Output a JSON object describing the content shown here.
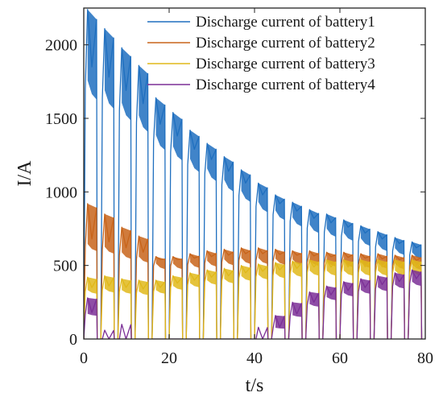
{
  "chart_data": {
    "type": "line",
    "title": "",
    "xlabel": "t/s",
    "ylabel": "I/A",
    "xlim": [
      0,
      80
    ],
    "ylim": [
      0,
      2250
    ],
    "x_ticks": [
      0,
      20,
      40,
      60,
      80
    ],
    "y_ticks": [
      0,
      500,
      1000,
      1500,
      2000
    ],
    "grid": false,
    "legend_position": "top-right",
    "pulse_period_s": 4,
    "series": [
      {
        "name": "Discharge current of battery1",
        "color": "#1f6fbf",
        "pulse_peak": [
          2240,
          2110,
          1980,
          1860,
          1640,
          1540,
          1420,
          1330,
          1240,
          1150,
          1060,
          980,
          930,
          880,
          850,
          810,
          770,
          730,
          690,
          660
        ],
        "pulse_band": [
          1850,
          1780,
          1690,
          1600,
          1460,
          1380,
          1290,
          1220,
          1140,
          1060,
          980,
          920,
          870,
          820,
          790,
          760,
          720,
          680,
          650,
          620
        ]
      },
      {
        "name": "Discharge current of battery2",
        "color": "#c8641a",
        "pulse_peak": [
          920,
          850,
          760,
          700,
          560,
          560,
          580,
          600,
          610,
          620,
          620,
          610,
          600,
          600,
          590,
          590,
          580,
          580,
          570,
          570
        ],
        "pulse_band": [
          680,
          660,
          620,
          590,
          540,
          540,
          550,
          560,
          570,
          580,
          580,
          575,
          570,
          565,
          560,
          555,
          550,
          545,
          540,
          535
        ]
      },
      {
        "name": "Discharge current of battery3",
        "color": "#e0b81a",
        "pulse_peak": [
          420,
          430,
          410,
          400,
          400,
          430,
          450,
          470,
          480,
          500,
          510,
          520,
          530,
          540,
          540,
          540,
          540,
          540,
          540,
          540
        ],
        "pulse_band": [
          350,
          360,
          350,
          340,
          350,
          380,
          400,
          420,
          430,
          450,
          460,
          470,
          480,
          490,
          490,
          490,
          490,
          490,
          490,
          490
        ]
      },
      {
        "name": "Discharge current of battery4",
        "color": "#7b2f96",
        "pulse_peak": [
          280,
          60,
          100,
          0,
          0,
          0,
          0,
          0,
          0,
          0,
          80,
          160,
          250,
          320,
          360,
          390,
          410,
          430,
          450,
          470
        ],
        "pulse_band": [
          180,
          0,
          0,
          0,
          0,
          0,
          0,
          0,
          0,
          0,
          0,
          80,
          170,
          250,
          300,
          330,
          350,
          370,
          390,
          410
        ]
      }
    ]
  }
}
